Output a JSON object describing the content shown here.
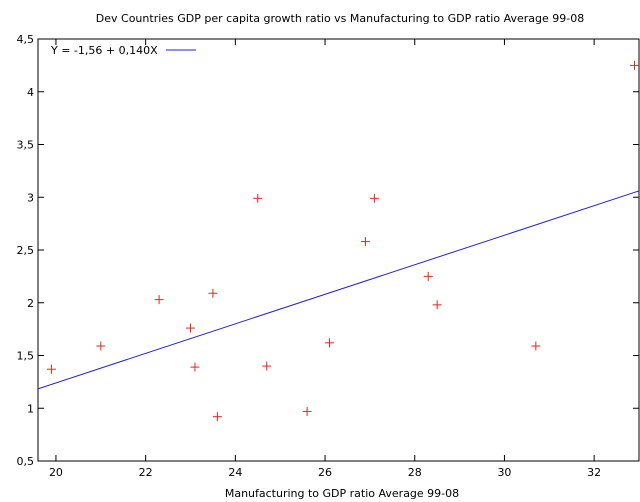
{
  "chart_data": {
    "type": "scatter",
    "title": "Dev Countries GDP per capita growth ratio vs Manufacturing to GDP ratio Average 99-08",
    "xlabel": "Manufacturing to GDP ratio Average 99-08",
    "ylabel": "",
    "xlim": [
      19.6,
      33.0
    ],
    "ylim": [
      0.5,
      4.5
    ],
    "x_ticks": [
      20,
      22,
      24,
      26,
      28,
      30,
      32
    ],
    "x_tick_labels": [
      "20",
      "22",
      "24",
      "26",
      "28",
      "30",
      "32"
    ],
    "y_ticks": [
      0.5,
      1.0,
      1.5,
      2.0,
      2.5,
      3.0,
      3.5,
      4.0,
      4.5
    ],
    "y_tick_labels": [
      "0,5",
      "1",
      "1,5",
      "2",
      "2,5",
      "3",
      "3,5",
      "4",
      "4,5"
    ],
    "grid": false,
    "legend_position": "top-left",
    "series": [
      {
        "marker": "+",
        "color": "#e8231c",
        "points": [
          {
            "x": 19.9,
            "y": 1.37
          },
          {
            "x": 21.0,
            "y": 1.59
          },
          {
            "x": 22.3,
            "y": 2.03
          },
          {
            "x": 23.0,
            "y": 1.76
          },
          {
            "x": 23.1,
            "y": 1.39
          },
          {
            "x": 23.5,
            "y": 2.09
          },
          {
            "x": 23.6,
            "y": 0.92
          },
          {
            "x": 24.5,
            "y": 2.99
          },
          {
            "x": 24.7,
            "y": 1.4
          },
          {
            "x": 25.6,
            "y": 0.97
          },
          {
            "x": 26.1,
            "y": 1.62
          },
          {
            "x": 26.9,
            "y": 2.58
          },
          {
            "x": 27.1,
            "y": 2.99
          },
          {
            "x": 28.3,
            "y": 2.25
          },
          {
            "x": 28.5,
            "y": 1.98
          },
          {
            "x": 30.7,
            "y": 1.59
          },
          {
            "x": 32.9,
            "y": 4.25
          }
        ]
      }
    ],
    "fit_line": {
      "name": "Y = -1,56 + 0,140X",
      "intercept": -1.56,
      "slope": 0.14,
      "color": "#2222cc"
    }
  }
}
